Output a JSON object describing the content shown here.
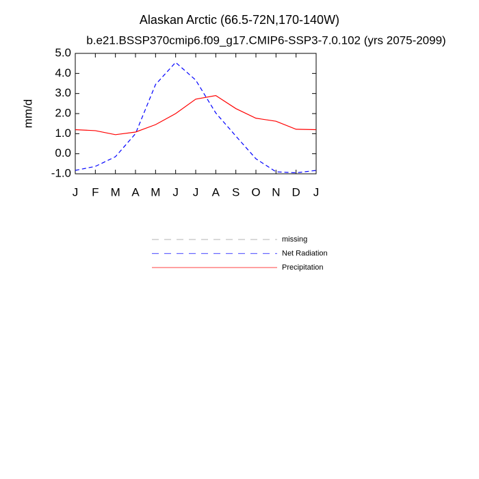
{
  "chart_data": {
    "type": "line",
    "title": "Alaskan Arctic (66.5-72N,170-140W)",
    "subtitle": "b.e21.BSSP370cmip6.f09_g17.CMIP6-SSP3-7.0.102 (yrs 2075-2099)",
    "y_label": "mm/d",
    "categories": [
      "J",
      "F",
      "M",
      "A",
      "M",
      "J",
      "J",
      "A",
      "S",
      "O",
      "N",
      "D",
      "J"
    ],
    "series": [
      {
        "name": "missing",
        "color": "#999999",
        "dashed": true,
        "values": [
          null,
          null,
          null,
          null,
          null,
          null,
          null,
          null,
          null,
          null,
          null,
          null,
          null
        ]
      },
      {
        "name": "Net Radiation",
        "color": "#0000ff",
        "dashed": true,
        "values": [
          -0.83,
          -0.63,
          -0.15,
          1.0,
          3.45,
          4.55,
          3.67,
          2.03,
          0.88,
          -0.25,
          -0.9,
          -0.95,
          -0.83
        ]
      },
      {
        "name": "Precipitation",
        "color": "#ff0000",
        "dashed": false,
        "values": [
          1.2,
          1.15,
          0.95,
          1.08,
          1.45,
          2.0,
          2.72,
          2.9,
          2.25,
          1.77,
          1.62,
          1.22,
          1.2
        ]
      }
    ],
    "ylim": [
      -1,
      5
    ],
    "yticks": [
      {
        "value": -1,
        "label": "-1.0"
      },
      {
        "value": 0,
        "label": "0.0"
      },
      {
        "value": 1,
        "label": "1.0"
      },
      {
        "value": 2,
        "label": "2.0"
      },
      {
        "value": 3,
        "label": "3.0"
      },
      {
        "value": 4,
        "label": "4.0"
      },
      {
        "value": 5,
        "label": "5.0"
      }
    ]
  }
}
